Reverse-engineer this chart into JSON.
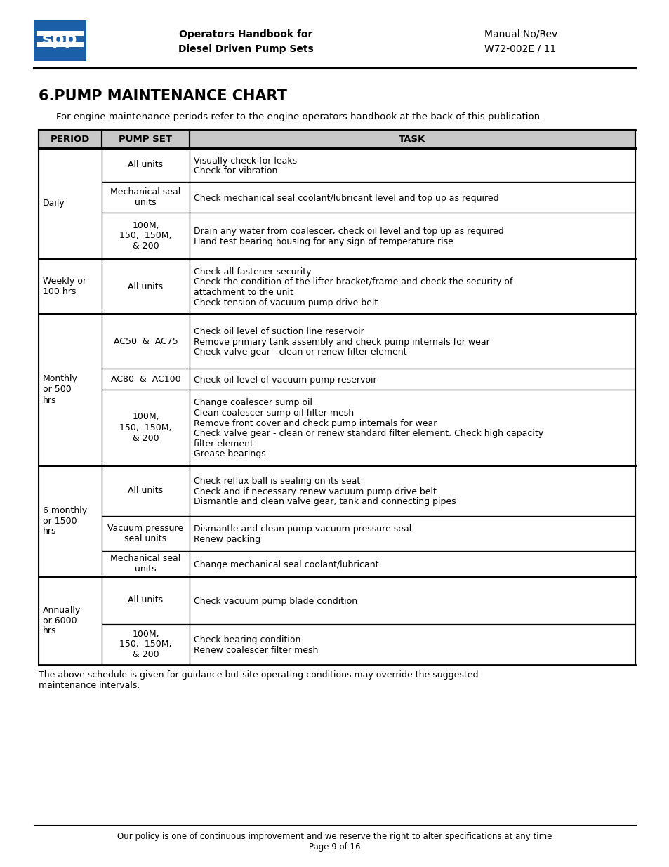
{
  "page_title": "6.PUMP MAINTENANCE CHART",
  "subtitle": "For engine maintenance periods refer to the engine operators handbook at the back of this publication.",
  "header_left": "Operators Handbook for\nDiesel Driven Pump Sets",
  "header_right": "Manual No/Rev\nW72-002E / 11",
  "footer_text": "Our policy is one of continuous improvement and we reserve the right to alter specifications at any time\nPage 9 of 16",
  "footnote": "The above schedule is given for guidance but site operating conditions may override the suggested\nmaintenance intervals.",
  "col_headers": [
    "PERIOD",
    "PUMP SET",
    "TASK"
  ],
  "spp_logo_color": "#1a5fa8",
  "bg_color": "#ffffff",
  "text_color": "#000000",
  "table_rows": [
    {
      "period": "Daily",
      "period_span": 3,
      "pump_set": "All units",
      "tasks": [
        "Visually check for leaks",
        "Check for vibration"
      ],
      "group_start": true
    },
    {
      "period": "",
      "period_span": 0,
      "pump_set": "Mechanical seal\nunits",
      "tasks": [
        "Check mechanical seal coolant/lubricant level and top up as required"
      ],
      "group_start": false
    },
    {
      "period": "",
      "period_span": 0,
      "pump_set": "100M,\n150,  150M,\n& 200",
      "tasks": [
        "Drain any water from coalescer, check oil level and top up as required",
        "Hand test bearing housing for any sign of temperature rise"
      ],
      "group_start": false
    },
    {
      "period": "Weekly or\n100 hrs",
      "period_span": 1,
      "pump_set": "All units",
      "tasks": [
        "Check all fastener security",
        "Check the condition of the lifter bracket/frame and check the security of attachment to the unit",
        "Check tension of vacuum pump drive belt"
      ],
      "group_start": true
    },
    {
      "period": "Monthly\nor 500\nhrs",
      "period_span": 3,
      "pump_set": "AC50  &  AC75",
      "tasks": [
        "Check oil level of suction line reservoir",
        "Remove primary tank assembly and check pump internals for wear",
        "Check valve gear - clean or renew filter element"
      ],
      "group_start": true
    },
    {
      "period": "",
      "period_span": 0,
      "pump_set": "AC80  &  AC100",
      "tasks": [
        "Check oil level of vacuum pump reservoir"
      ],
      "group_start": false
    },
    {
      "period": "",
      "period_span": 0,
      "pump_set": "100M,\n150,  150M,\n& 200",
      "tasks": [
        "Change coalescer sump oil",
        "Clean coalescer sump oil filter mesh",
        "Remove front cover and check pump internals for wear",
        "Check valve gear - clean or renew standard filter element. Check high capacity filter element.",
        "Grease bearings"
      ],
      "group_start": false
    },
    {
      "period": "6 monthly\nor 1500\nhrs",
      "period_span": 3,
      "pump_set": "All units",
      "tasks": [
        "Check reflux ball is sealing on its seat",
        "Check and if necessary renew vacuum pump drive belt",
        "Dismantle and clean valve gear, tank and connecting pipes"
      ],
      "group_start": true
    },
    {
      "period": "",
      "period_span": 0,
      "pump_set": "Vacuum pressure\nseal units",
      "tasks": [
        "Dismantle and clean pump vacuum pressure seal",
        "Renew packing"
      ],
      "group_start": false
    },
    {
      "period": "",
      "period_span": 0,
      "pump_set": "Mechanical seal\nunits",
      "tasks": [
        "Change mechanical seal coolant/lubricant"
      ],
      "group_start": false
    },
    {
      "period": "Annually\nor 6000\nhrs",
      "period_span": 2,
      "pump_set": "All units",
      "tasks": [
        "Check vacuum pump blade condition"
      ],
      "group_start": true
    },
    {
      "period": "",
      "period_span": 0,
      "pump_set": "100M,\n150,  150M,\n& 200",
      "tasks": [
        "Check bearing condition",
        "Renew coalescer filter mesh"
      ],
      "group_start": false
    }
  ]
}
